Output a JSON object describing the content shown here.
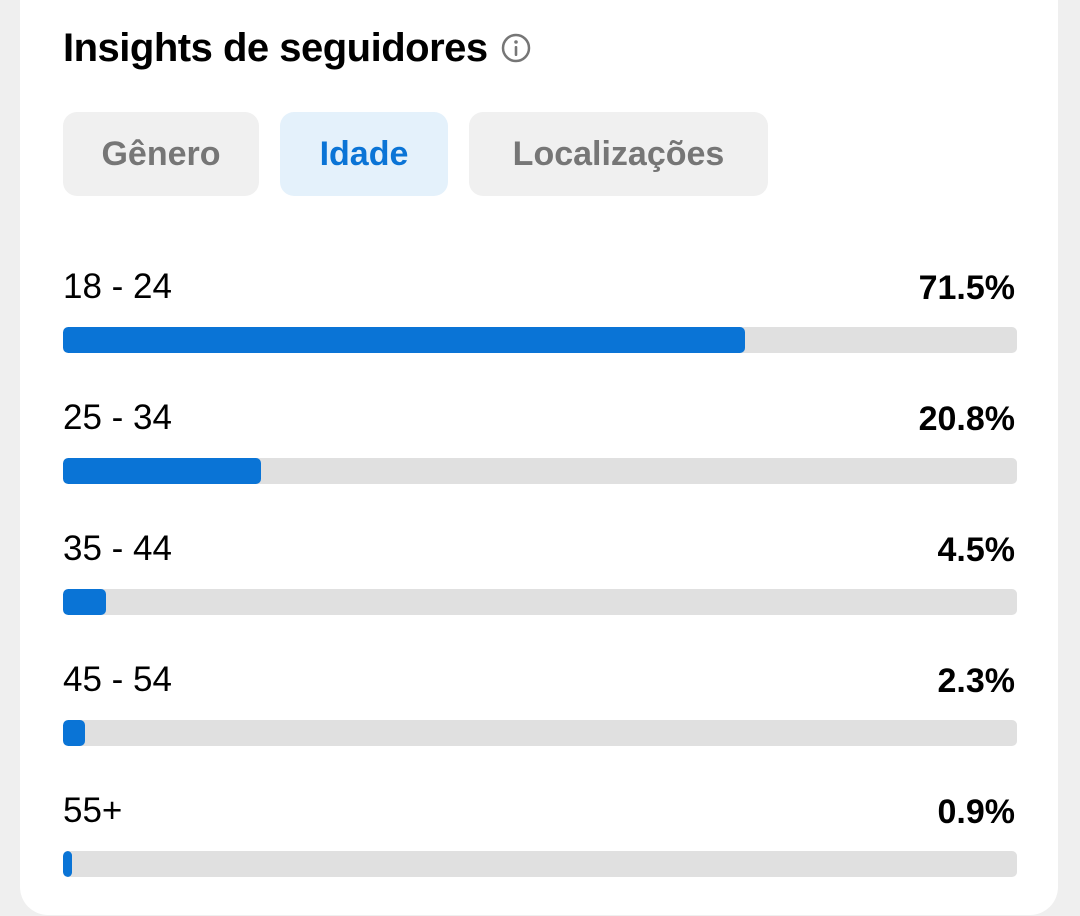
{
  "header": {
    "title": "Insights de seguidores",
    "info_icon": "info-icon"
  },
  "tabs": [
    {
      "label": "Gênero",
      "selected": false
    },
    {
      "label": "Idade",
      "selected": true
    },
    {
      "label": "Localizações",
      "selected": false
    }
  ],
  "age_rows": [
    {
      "label": "18 - 24",
      "value_text": "71.5%",
      "fraction": 0.715
    },
    {
      "label": "25 - 34",
      "value_text": "20.8%",
      "fraction": 0.208
    },
    {
      "label": "35 - 44",
      "value_text": "4.5%",
      "fraction": 0.045
    },
    {
      "label": "45 - 54",
      "value_text": "2.3%",
      "fraction": 0.023
    },
    {
      "label": "55+",
      "value_text": "0.9%",
      "fraction": 0.009
    }
  ],
  "colors": {
    "accent": "#0a74d6",
    "selected_tab_bg": "#e4f1fb",
    "tab_bg": "#f0f0f0",
    "track": "#e0e0e0"
  }
}
